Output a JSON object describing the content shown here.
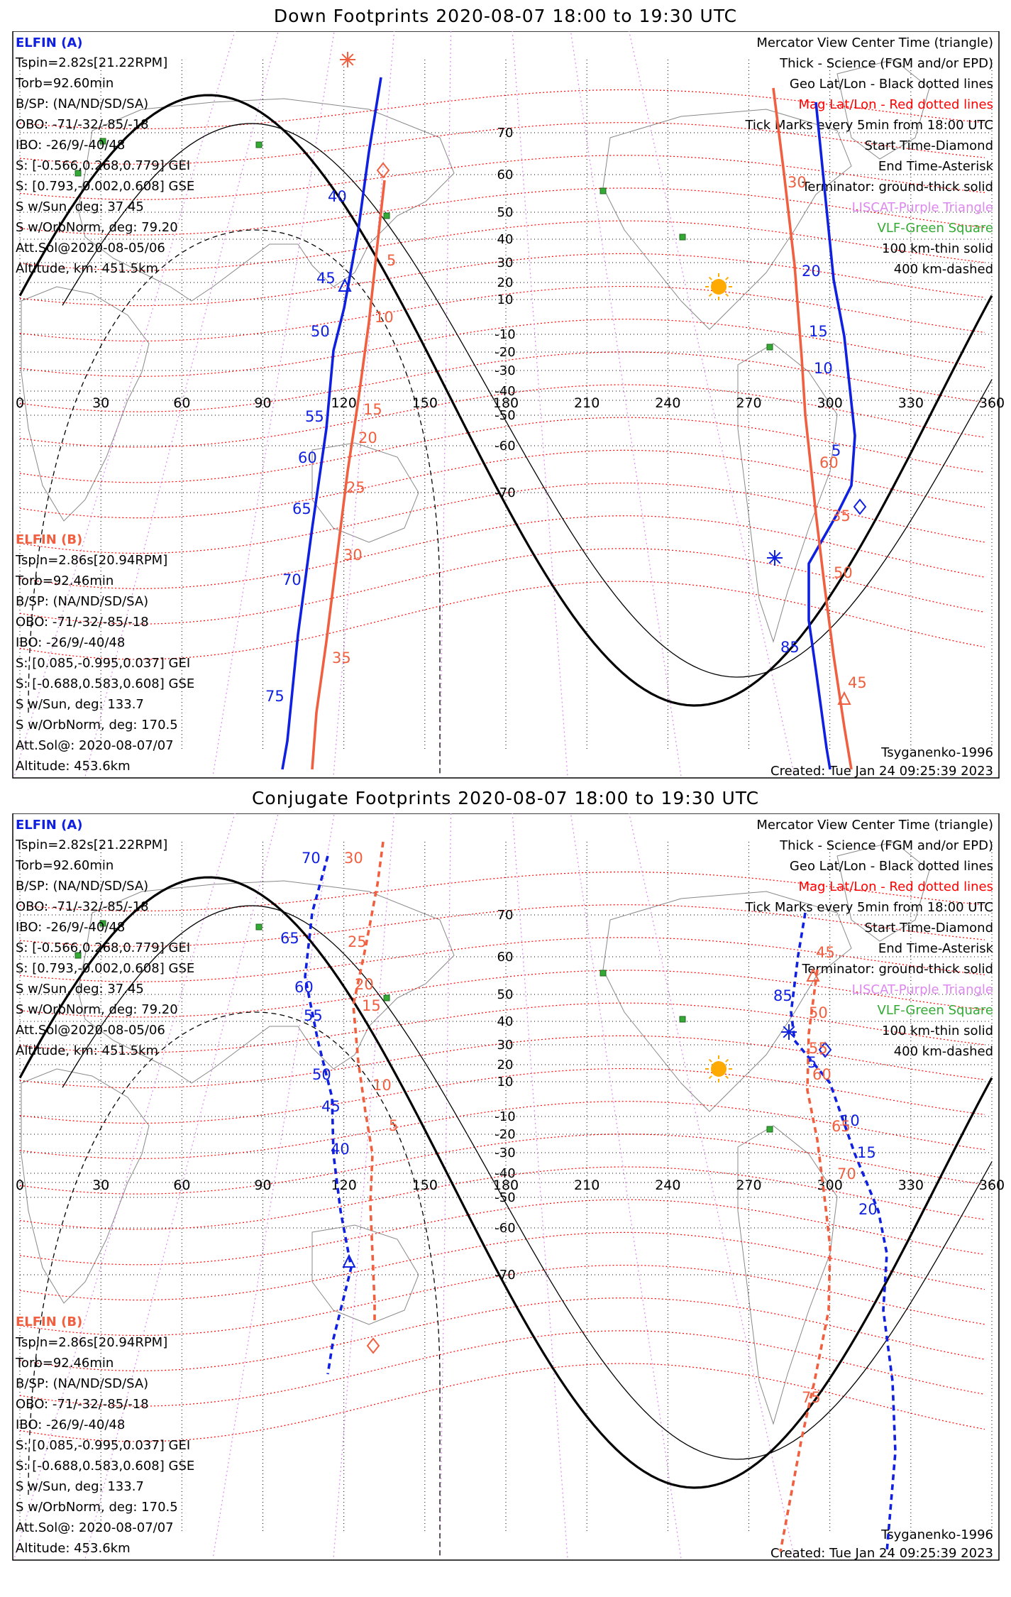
{
  "panels": [
    {
      "id": "down",
      "title": "Down Footprints 2020-08-07 18:00 to 19:30 UTC",
      "elfin_a": {
        "name": "ELFIN (A)",
        "lines": [
          "Tspin=2.82s[21.22RPM]",
          "Torb=92.60min",
          "B/SP: (NA/ND/SD/SA)",
          "OBO: -71/-32/-85/-18",
          "IBO: -26/9/-40/48",
          "S: [-0.566,0.268,0.779] GEI",
          "S: [0.793,-0.002,0.608] GSE",
          "S w/Sun, deg: 37.45",
          "S w/OrbNorm, deg: 79.20",
          "Att.Sol@2020-08-05/06",
          "Altitude, km: 451.5km"
        ]
      },
      "elfin_b": {
        "name": "ELFIN (B)",
        "lines": [
          "Tspin=2.86s[20.94RPM]",
          "Torb=92.46min",
          "B/SP: (NA/ND/SD/SA)",
          "OBO: -71/-32/-85/-18",
          "IBO: -26/9/-40/48",
          "S: [0.085,-0.995,0.037] GEI",
          "S: [-0.688,0.583,0.608] GSE",
          "S w/Sun, deg: 133.7",
          "S w/OrbNorm, deg: 170.5",
          "Att.Sol@: 2020-08-07/07",
          "Altitude: 453.6km"
        ]
      },
      "legend": [
        {
          "text": "Mercator View Center Time (triangle)",
          "color": "#000000"
        },
        {
          "text": "Thick - Science (FGM and/or EPD)",
          "color": "#000000"
        },
        {
          "text": "Geo Lat/Lon - Black dotted lines",
          "color": "#000000"
        },
        {
          "text": "Mag Lat/Lon - Red dotted lines",
          "color": "#ff0000"
        },
        {
          "text": "Tick Marks every 5min from 18:00 UTC",
          "color": "#000000"
        },
        {
          "text": "Start Time-Diamond",
          "color": "#000000"
        },
        {
          "text": "End Time-Asterisk",
          "color": "#000000"
        },
        {
          "text": "Terminator: ground-thick solid",
          "color": "#000000"
        },
        {
          "text": "LISCAT-Purple Triangle",
          "color": "#dd88ee"
        },
        {
          "text": "VLF-Green Square",
          "color": "#33aa33"
        },
        {
          "text": "100 km-thin solid",
          "color": "#000000"
        },
        {
          "text": "400 km-dashed",
          "color": "#000000"
        }
      ],
      "model": "Tsyganenko-1996",
      "created": "Created: Tue Jan 24 09:25:39 2023",
      "a_ticks": [
        "40",
        "45",
        "50",
        "55",
        "60",
        "65",
        "70",
        "75",
        "20",
        "15",
        "10",
        "5",
        "85"
      ],
      "b_ticks": [
        "5",
        "10",
        "15",
        "20",
        "25",
        "30",
        "35",
        "30",
        "35",
        "50",
        "45",
        "60"
      ]
    },
    {
      "id": "conj",
      "title": "Conjugate Footprints 2020-08-07 18:00 to 19:30 UTC",
      "elfin_a": {
        "name": "ELFIN (A)",
        "lines": [
          "Tspin=2.82s[21.22RPM]",
          "Torb=92.60min",
          "B/SP: (NA/ND/SD/SA)",
          "OBO: -71/-32/-85/-18",
          "IBO: -26/9/-40/48",
          "S: [-0.566,0.268,0.779] GEI",
          "S: [0.793,-0.002,0.608] GSE",
          "S w/Sun, deg: 37.45",
          "S w/OrbNorm, deg: 79.20",
          "Att.Sol@2020-08-05/06",
          "Altitude, km: 451.5km"
        ]
      },
      "elfin_b": {
        "name": "ELFIN (B)",
        "lines": [
          "Tspin=2.86s[20.94RPM]",
          "Torb=92.46min",
          "B/SP: (NA/ND/SD/SA)",
          "OBO: -71/-32/-85/-18",
          "IBO: -26/9/-40/48",
          "S: [0.085,-0.995,0.037] GEI",
          "S: [-0.688,0.583,0.608] GSE",
          "S w/Sun, deg: 133.7",
          "S w/OrbNorm, deg: 170.5",
          "Att.Sol@: 2020-08-07/07",
          "Altitude: 453.6km"
        ]
      },
      "legend": [
        {
          "text": "Mercator View Center Time (triangle)",
          "color": "#000000"
        },
        {
          "text": "Thick - Science (FGM and/or EPD)",
          "color": "#000000"
        },
        {
          "text": "Geo Lat/Lon - Black dotted lines",
          "color": "#000000"
        },
        {
          "text": "Mag Lat/Lon - Red dotted lines",
          "color": "#ff0000"
        },
        {
          "text": "Tick Marks every 5min from 18:00 UTC",
          "color": "#000000"
        },
        {
          "text": "Start Time-Diamond",
          "color": "#000000"
        },
        {
          "text": "End Time-Asterisk",
          "color": "#000000"
        },
        {
          "text": "Terminator: ground-thick solid",
          "color": "#000000"
        },
        {
          "text": "LISCAT-Purple Triangle",
          "color": "#dd88ee"
        },
        {
          "text": "VLF-Green Square",
          "color": "#33aa33"
        },
        {
          "text": "100 km-thin solid",
          "color": "#000000"
        },
        {
          "text": "400 km-dashed",
          "color": "#000000"
        }
      ],
      "model": "Tsyganenko-1996",
      "created": "Created: Tue Jan 24 09:25:39 2023",
      "a_ticks": [
        "70",
        "65",
        "60",
        "55",
        "50",
        "45",
        "40",
        "85",
        "5",
        "10",
        "15",
        "20"
      ],
      "b_ticks": [
        "30",
        "25",
        "20",
        "15",
        "10",
        "5",
        "45",
        "50",
        "55",
        "60",
        "65",
        "70",
        "75"
      ]
    }
  ],
  "axes": {
    "lon_labels": [
      "0",
      "30",
      "60",
      "90",
      "120",
      "150",
      "180",
      "210",
      "240",
      "270",
      "300",
      "330",
      "360"
    ],
    "lat_labels": [
      "70",
      "60",
      "50",
      "40",
      "30",
      "20",
      "10",
      "-10",
      "-20",
      "-30",
      "-40",
      "-50",
      "-60",
      "-70"
    ]
  },
  "colors": {
    "elfin_a": "#1020e0",
    "elfin_b": "#f06040",
    "mag_grid": "#ff0000",
    "geo_grid": "#000000",
    "liscat": "#dd88ee",
    "vlf": "#33aa33",
    "sun": "#ffaa00"
  }
}
